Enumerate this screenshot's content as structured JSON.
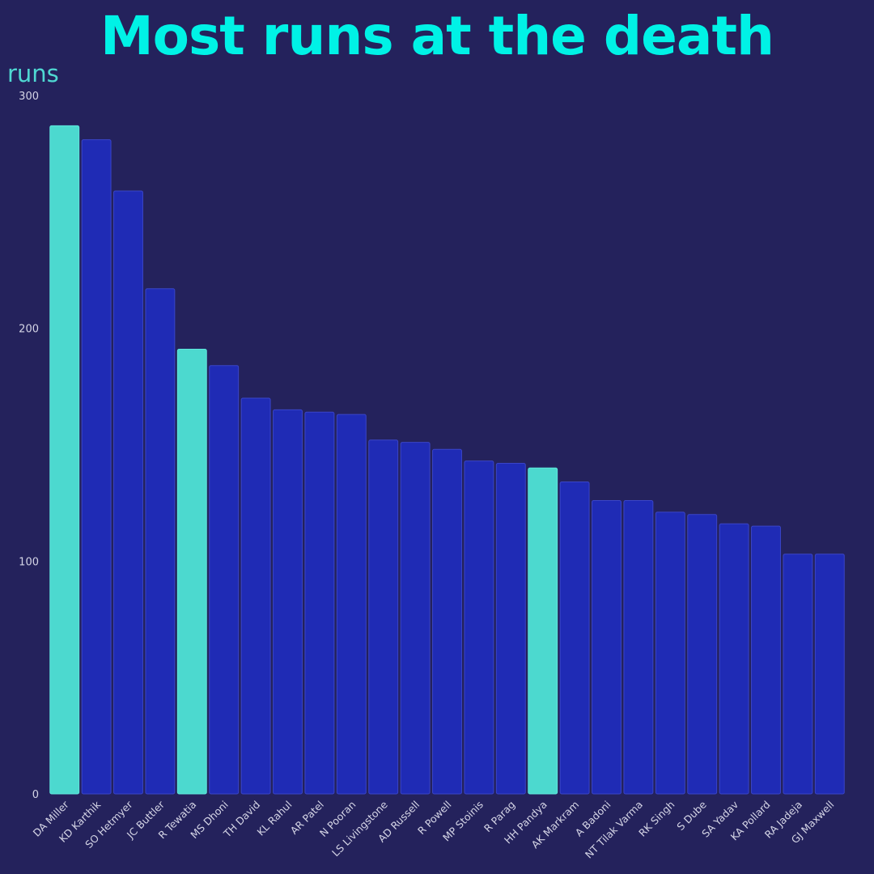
{
  "chart_data": {
    "type": "bar",
    "title": "Most runs at the death",
    "ylabel": "runs",
    "xlabel": "",
    "ylim": [
      0,
      300
    ],
    "y_ticks": [
      0,
      100,
      200,
      300
    ],
    "grid": false,
    "colors": {
      "background": "#24225c",
      "title": "#00f2e6",
      "ylabel": "#4fd8d2",
      "bar_default": "#1f2bb5",
      "bar_default_edge": "#3a45c8",
      "bar_highlight": "#4cd9cf",
      "bar_highlight_edge": "#5fe6dc",
      "tick_text": "#d5d5e6"
    },
    "categories": [
      "DA Miller",
      "KD Karthik",
      "SO Hetmyer",
      "JC Buttler",
      "R Tewatia",
      "MS Dhoni",
      "TH David",
      "KL Rahul",
      "AR Patel",
      "N Pooran",
      "LS Livingstone",
      "AD Russell",
      "R Powell",
      "MP Stoinis",
      "R Parag",
      "HH Pandya",
      "AK Markram",
      "A Badoni",
      "NT Tilak Varma",
      "RK Singh",
      "S Dube",
      "SA Yadav",
      "KA Pollard",
      "RA Jadeja",
      "GJ Maxwell"
    ],
    "values": [
      287,
      281,
      259,
      217,
      191,
      184,
      170,
      165,
      164,
      163,
      152,
      151,
      148,
      143,
      142,
      140,
      134,
      126,
      126,
      121,
      120,
      116,
      115,
      103,
      103
    ],
    "highlighted": [
      true,
      false,
      false,
      false,
      true,
      false,
      false,
      false,
      false,
      false,
      false,
      false,
      false,
      false,
      false,
      true,
      false,
      false,
      false,
      false,
      false,
      false,
      false,
      false,
      false
    ]
  }
}
